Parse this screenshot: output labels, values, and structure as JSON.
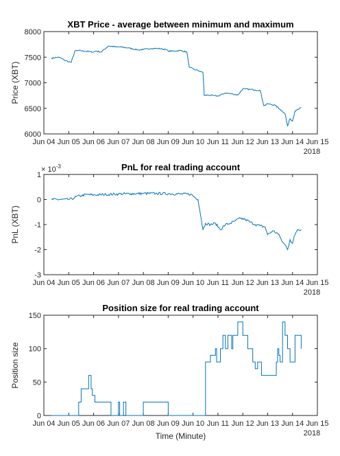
{
  "chart_data": [
    {
      "type": "line",
      "title": "XBT Price - average between minimum and maximum",
      "ylabel": "Price (XBT)",
      "xlabel": "",
      "x_year_label": "2018",
      "x_tick_labels": [
        "Jun 04",
        "Jun 05",
        "Jun 06",
        "Jun 07",
        "Jun 08",
        "Jun 09",
        "Jun 10",
        "Jun 11",
        "Jun 12",
        "Jun 13",
        "Jun 14",
        "Jun 15"
      ],
      "xlim": [
        4,
        15
      ],
      "ylim": [
        6000,
        8000
      ],
      "y_ticks": [
        6000,
        6500,
        7000,
        7500,
        8000
      ],
      "y_tick_labels": [
        "6000",
        "6500",
        "7000",
        "7500",
        "8000"
      ],
      "color": "#0072BD",
      "x": [
        4.3,
        4.6,
        4.8,
        5.0,
        5.1,
        5.25,
        5.4,
        5.8,
        6.0,
        6.1,
        6.3,
        6.6,
        6.9,
        7.1,
        7.4,
        7.8,
        8.0,
        8.3,
        8.6,
        8.9,
        9.0,
        9.2,
        9.5,
        9.75,
        9.85,
        10.1,
        10.2,
        10.4,
        10.45,
        10.6,
        10.8,
        11.0,
        11.3,
        11.6,
        11.8,
        12.0,
        12.3,
        12.5,
        12.7,
        12.85,
        13.0,
        13.3,
        13.5,
        13.7,
        13.8,
        13.9,
        14.0,
        14.1,
        14.2,
        14.35
      ],
      "y": [
        7480,
        7500,
        7450,
        7410,
        7400,
        7620,
        7630,
        7610,
        7600,
        7620,
        7600,
        7720,
        7700,
        7700,
        7680,
        7640,
        7650,
        7670,
        7670,
        7650,
        7620,
        7620,
        7630,
        7600,
        7300,
        7250,
        7240,
        7200,
        6750,
        6760,
        6750,
        6740,
        6800,
        6780,
        6760,
        6880,
        6870,
        6860,
        6850,
        6550,
        6590,
        6560,
        6480,
        6400,
        6150,
        6300,
        6250,
        6450,
        6480,
        6510
      ],
      "noise": 12
    },
    {
      "type": "line",
      "title": "PnL for real trading account",
      "ylabel": "PnL (XBT)",
      "xlabel": "",
      "x_year_label": "2018",
      "x_tick_labels": [
        "Jun 04",
        "Jun 05",
        "Jun 06",
        "Jun 07",
        "Jun 08",
        "Jun 09",
        "Jun 10",
        "Jun 11",
        "Jun 12",
        "Jun 13",
        "Jun 14",
        "Jun 15"
      ],
      "xlim": [
        4,
        15
      ],
      "ylim": [
        -3,
        1
      ],
      "y_exponent_label": "× 10",
      "y_exponent_power": "-3",
      "y_ticks": [
        -3,
        -2,
        -1,
        0,
        1
      ],
      "y_tick_labels": [
        "-3",
        "-2",
        "-1",
        "0",
        "1"
      ],
      "color": "#0072BD",
      "x": [
        4.3,
        5.0,
        5.2,
        5.3,
        5.5,
        5.7,
        6.0,
        6.5,
        7.0,
        7.5,
        8.0,
        8.5,
        9.0,
        9.5,
        9.9,
        10.2,
        10.3,
        10.4,
        10.5,
        10.7,
        10.9,
        11.1,
        11.3,
        11.5,
        11.7,
        11.9,
        12.1,
        12.3,
        12.5,
        12.7,
        12.9,
        13.0,
        13.2,
        13.4,
        13.5,
        13.6,
        13.7,
        13.8,
        13.9,
        14.0,
        14.1,
        14.2,
        14.35
      ],
      "y": [
        0.0,
        0.0,
        0.05,
        0.12,
        0.15,
        0.2,
        0.18,
        0.2,
        0.22,
        0.23,
        0.24,
        0.24,
        0.23,
        0.22,
        0.21,
        0.0,
        -0.6,
        -1.2,
        -0.95,
        -1.0,
        -0.95,
        -1.2,
        -1.0,
        -0.95,
        -0.85,
        -0.75,
        -0.8,
        -0.9,
        -1.0,
        -1.05,
        -1.1,
        -1.4,
        -1.25,
        -1.35,
        -1.5,
        -1.7,
        -1.8,
        -2.0,
        -1.6,
        -1.75,
        -1.4,
        -1.2,
        -1.2
      ],
      "noise": 0.05
    },
    {
      "type": "line",
      "title": "Position size for real trading account",
      "ylabel": "Position size",
      "xlabel": "Time (Minute)",
      "x_year_label": "2018",
      "x_tick_labels": [
        "Jun 04",
        "Jun 05",
        "Jun 06",
        "Jun 07",
        "Jun 08",
        "Jun 09",
        "Jun 10",
        "Jun 11",
        "Jun 12",
        "Jun 13",
        "Jun 14",
        "Jun 15"
      ],
      "xlim": [
        4,
        15
      ],
      "ylim": [
        0,
        150
      ],
      "y_ticks": [
        0,
        50,
        100,
        150
      ],
      "y_tick_labels": [
        "0",
        "50",
        "100",
        "150"
      ],
      "color": "#0072BD",
      "step": true,
      "x": [
        4.3,
        5.4,
        5.5,
        5.7,
        5.8,
        5.9,
        5.95,
        6.05,
        6.2,
        6.7,
        7.0,
        7.05,
        7.2,
        7.3,
        7.9,
        8.0,
        8.6,
        9.0,
        9.2,
        9.6,
        10.0,
        10.3,
        10.5,
        10.7,
        10.9,
        10.95,
        11.1,
        11.2,
        11.3,
        11.4,
        11.55,
        11.6,
        11.7,
        11.8,
        12.0,
        12.2,
        12.4,
        12.5,
        12.6,
        12.75,
        13.2,
        13.35,
        13.4,
        13.45,
        13.5,
        13.6,
        13.7,
        13.8,
        13.9,
        14.0,
        14.1,
        14.2,
        14.3,
        14.35
      ],
      "y": [
        0,
        20,
        40,
        40,
        60,
        40,
        30,
        20,
        20,
        0,
        20,
        0,
        20,
        0,
        0,
        20,
        20,
        0,
        0,
        0,
        0,
        0,
        80,
        90,
        100,
        80,
        100,
        120,
        100,
        120,
        100,
        120,
        120,
        140,
        120,
        100,
        80,
        70,
        80,
        60,
        60,
        80,
        100,
        90,
        80,
        140,
        120,
        100,
        80,
        80,
        120,
        120,
        120,
        100
      ]
    }
  ]
}
